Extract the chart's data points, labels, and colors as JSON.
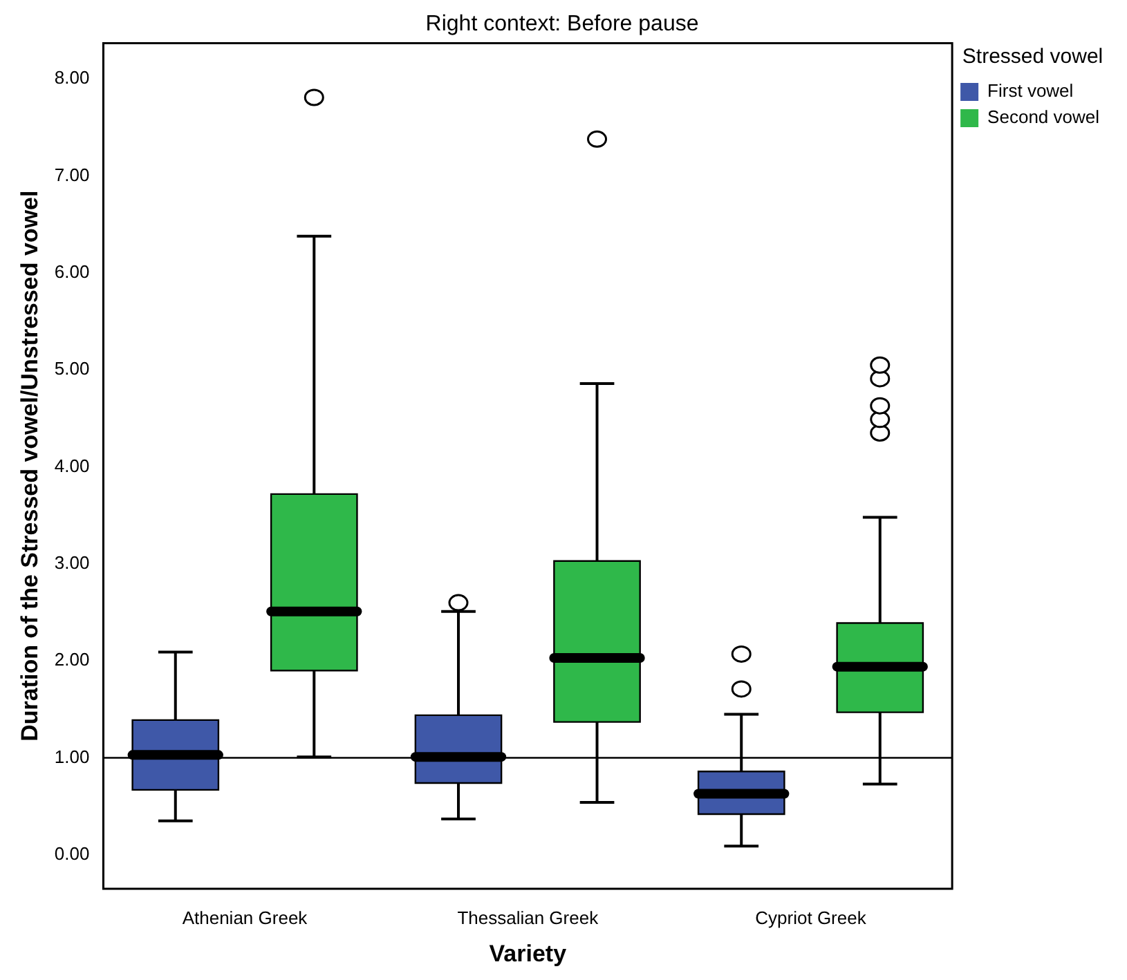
{
  "chart_data": {
    "type": "box",
    "title": "Right context: Before pause",
    "xlabel": "Variety",
    "ylabel": "Duration of the Stressed vowel/Unstressed vowel",
    "legend_title": "Stressed vowel",
    "legend": "top right",
    "grid": false,
    "categories": [
      "Athenian Greek",
      "Thessalian Greek",
      "Cypriot Greek"
    ],
    "ylim": [
      -0.35,
      8.37
    ],
    "yticks": [
      {
        "value": 0,
        "label": "0.00"
      },
      {
        "value": 1,
        "label": "1.00"
      },
      {
        "value": 2,
        "label": "2.00"
      },
      {
        "value": 3,
        "label": "3.00"
      },
      {
        "value": 4,
        "label": "4.00"
      },
      {
        "value": 5,
        "label": "5.00"
      },
      {
        "value": 6,
        "label": "6.00"
      },
      {
        "value": 7,
        "label": "7.00"
      },
      {
        "value": 8,
        "label": "8.00"
      }
    ],
    "ref_lines": [
      {
        "axis": "y",
        "value": 1,
        "color": "#000000"
      }
    ],
    "series": [
      {
        "name": "First vowel",
        "color": "#3f58a8",
        "boxes": [
          {
            "low": 0.35,
            "q1": 0.67,
            "median": 1.03,
            "q3": 1.39,
            "high": 2.09
          },
          {
            "low": 0.37,
            "q1": 0.74,
            "median": 1.01,
            "q3": 1.44,
            "high": 2.51,
            "outliers": [
              2.6
            ]
          },
          {
            "low": 0.09,
            "q1": 0.42,
            "median": 0.63,
            "q3": 0.86,
            "high": 1.45,
            "outliers": [
              1.71,
              2.07
            ]
          }
        ]
      },
      {
        "name": "Second vowel",
        "color": "#2fb84a",
        "boxes": [
          {
            "low": 1.01,
            "q1": 1.9,
            "median": 2.51,
            "q3": 3.72,
            "high": 6.38,
            "outliers": [
              7.81
            ]
          },
          {
            "low": 0.54,
            "q1": 1.37,
            "median": 2.03,
            "q3": 3.03,
            "high": 4.86,
            "outliers": [
              7.38
            ]
          },
          {
            "low": 0.73,
            "q1": 1.47,
            "median": 1.94,
            "q3": 2.39,
            "high": 3.48,
            "outliers": [
              4.35,
              4.49,
              4.63,
              4.91,
              5.05
            ]
          }
        ]
      }
    ]
  }
}
